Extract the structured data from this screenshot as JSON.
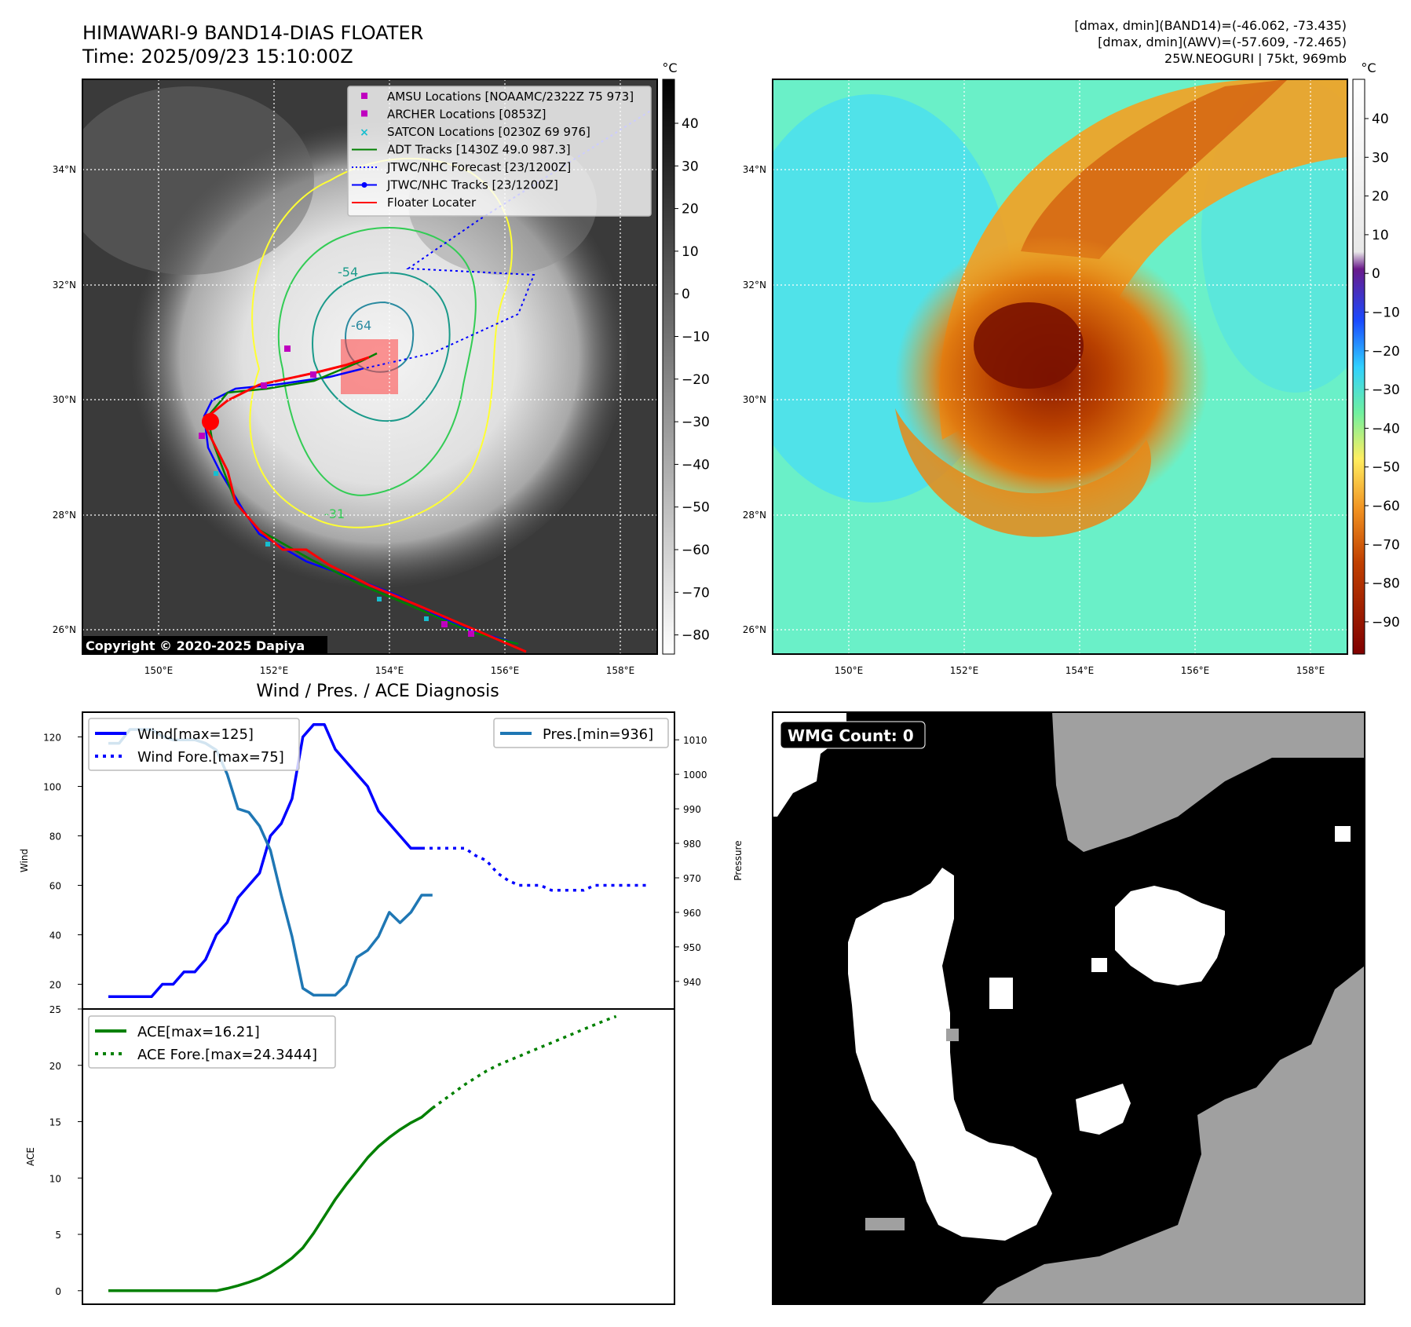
{
  "header": {
    "title_line1": "HIMAWARI-9 BAND14-DIAS FLOATER",
    "title_line2": "Time: 2025/09/23 15:10:00Z",
    "info_line1": "[dmax, dmin](BAND14)=(-46.062, -73.435)",
    "info_line2": "[dmax, dmin](AWV)=(-57.609, -72.465)",
    "info_line3": "25W.NEOGURI | 75kt, 969mb"
  },
  "ir_map": {
    "lat_labels": [
      "34°N",
      "32°N",
      "30°N",
      "28°N",
      "26°N"
    ],
    "lon_labels": [
      "150°E",
      "152°E",
      "154°E",
      "156°E",
      "158°E"
    ],
    "copyright": "Copyright © 2020-2025 Dapiya",
    "contour_labels": [
      "-54",
      "-64",
      "-31"
    ],
    "colorbar_unit": "°C",
    "colorbar_ticks": [
      "40",
      "30",
      "20",
      "10",
      "0",
      "−10",
      "−20",
      "−30",
      "−40",
      "−50",
      "−60",
      "−70",
      "−80"
    ],
    "legend": [
      {
        "label": "AMSU Locations [NOAAMC/2322Z 75 973]",
        "marker": "square",
        "color": "#bf00bf"
      },
      {
        "label": "ARCHER Locations [0853Z]",
        "marker": "square",
        "color": "#bf00bf"
      },
      {
        "label": "SATCON Locations [0230Z 69 976]",
        "marker": "x",
        "color": "#17becf"
      },
      {
        "label": "ADT Tracks [1430Z 49.0 987.3]",
        "marker": "line",
        "color": "#008000"
      },
      {
        "label": "JTWC/NHC Forecast [23/1200Z]",
        "marker": "dotted",
        "color": "#0000ff"
      },
      {
        "label": "JTWC/NHC Tracks [23/1200Z]",
        "marker": "line-dot",
        "color": "#0000ff"
      },
      {
        "label": "Floater Locater",
        "marker": "line",
        "color": "#ff0000"
      }
    ]
  },
  "awv_map": {
    "lat_labels": [
      "34°N",
      "32°N",
      "30°N",
      "28°N",
      "26°N"
    ],
    "lon_labels": [
      "150°E",
      "152°E",
      "154°E",
      "156°E",
      "158°E"
    ],
    "colorbar_unit": "°C",
    "colorbar_ticks": [
      "40",
      "30",
      "20",
      "10",
      "0",
      "−10",
      "−20",
      "−30",
      "−40",
      "−50",
      "−60",
      "−70",
      "−80",
      "−90"
    ]
  },
  "diagnosis": {
    "title": "Wind / Pres. / ACE Diagnosis",
    "wind_ylabel": "Wind",
    "pres_ylabel": "Pressure",
    "ace_ylabel": "ACE",
    "wind_ticks": [
      "120",
      "100",
      "80",
      "60",
      "40",
      "20"
    ],
    "pres_ticks": [
      "1010",
      "1000",
      "990",
      "980",
      "970",
      "960",
      "950",
      "940"
    ],
    "ace_ticks": [
      "25",
      "20",
      "15",
      "10",
      "5",
      "0"
    ],
    "legend_wind": "Wind[max=125]",
    "legend_wind_fore": "Wind Fore.[max=75]",
    "legend_pres": "Pres.[min=936]",
    "legend_ace": "ACE[max=16.21]",
    "legend_ace_fore": "ACE Fore.[max=24.3444]"
  },
  "wmg": {
    "label": "WMG Count: 0"
  },
  "chart_data": [
    {
      "type": "line",
      "title": "Wind / Pres. / ACE Diagnosis",
      "ylabel": "Wind",
      "ylim": [
        10,
        130
      ],
      "x": [
        0,
        1,
        2,
        3,
        4,
        5,
        6,
        7,
        8,
        9,
        10,
        11,
        12,
        13,
        14,
        15,
        16,
        17,
        18,
        19,
        20,
        21,
        22,
        23,
        24,
        25,
        26,
        27,
        28,
        29,
        30,
        31,
        32,
        33,
        34,
        35,
        36,
        37,
        38,
        39,
        40,
        41,
        42,
        43,
        44,
        45,
        46,
        47,
        48,
        49,
        50
      ],
      "series": [
        {
          "name": "Wind[max=125]",
          "color": "#0000ff",
          "values": [
            15,
            15,
            15,
            15,
            15,
            20,
            20,
            25,
            25,
            30,
            40,
            45,
            55,
            60,
            65,
            80,
            85,
            95,
            120,
            125,
            125,
            115,
            110,
            105,
            100,
            90,
            85,
            80,
            75,
            75,
            null,
            null,
            null,
            null,
            null,
            null,
            null,
            null,
            null,
            null,
            null,
            null,
            null,
            null,
            null,
            null,
            null,
            null,
            null,
            null,
            null
          ]
        },
        {
          "name": "Wind Fore.[max=75]",
          "color": "#0000ff",
          "dashed": true,
          "values": [
            null,
            null,
            null,
            null,
            null,
            null,
            null,
            null,
            null,
            null,
            null,
            null,
            null,
            null,
            null,
            null,
            null,
            null,
            null,
            null,
            null,
            null,
            null,
            null,
            null,
            null,
            null,
            null,
            null,
            75,
            75,
            75,
            75,
            75,
            72,
            70,
            65,
            62,
            60,
            60,
            60,
            58,
            58,
            58,
            58,
            60,
            60,
            60,
            60,
            60,
            60
          ]
        },
        {
          "name": "Pres.[min=936]",
          "color": "#1f77b4",
          "axis": "pressure",
          "ylim": [
            932,
            1018
          ],
          "values": [
            1009,
            1009,
            1013,
            1013,
            1013,
            1011,
            1010,
            1010,
            1010,
            1009,
            1007,
            1000,
            990,
            989,
            985,
            978,
            965,
            953,
            938,
            936,
            936,
            936,
            939,
            947,
            949,
            953,
            960,
            957,
            960,
            965,
            965,
            null,
            null,
            null,
            null,
            null,
            null,
            null,
            null,
            null,
            null,
            null,
            null,
            null,
            null,
            null,
            null,
            null,
            null,
            null,
            null
          ]
        }
      ]
    },
    {
      "type": "line",
      "ylabel": "ACE",
      "ylim": [
        -1.2,
        25
      ],
      "x": [
        0,
        1,
        2,
        3,
        4,
        5,
        6,
        7,
        8,
        9,
        10,
        11,
        12,
        13,
        14,
        15,
        16,
        17,
        18,
        19,
        20,
        21,
        22,
        23,
        24,
        25,
        26,
        27,
        28,
        29,
        30,
        31,
        32,
        33,
        34,
        35,
        36,
        37,
        38,
        39,
        40,
        41,
        42,
        43,
        44,
        45,
        46,
        47,
        48,
        49,
        50
      ],
      "series": [
        {
          "name": "ACE[max=16.21]",
          "color": "#008000",
          "values": [
            0,
            0,
            0,
            0,
            0,
            0,
            0,
            0,
            0,
            0,
            0,
            0.2,
            0.45,
            0.75,
            1.1,
            1.6,
            2.2,
            2.9,
            3.8,
            5.1,
            6.6,
            8.1,
            9.4,
            10.6,
            11.8,
            12.8,
            13.6,
            14.3,
            14.9,
            15.4,
            16.21,
            null,
            null,
            null,
            null,
            null,
            null,
            null,
            null,
            null,
            null,
            null,
            null,
            null,
            null,
            null,
            null,
            null,
            null,
            null,
            null
          ]
        },
        {
          "name": "ACE Fore.[max=24.3444]",
          "color": "#008000",
          "dashed": true,
          "values": [
            null,
            null,
            null,
            null,
            null,
            null,
            null,
            null,
            null,
            null,
            null,
            null,
            null,
            null,
            null,
            null,
            null,
            null,
            null,
            null,
            null,
            null,
            null,
            null,
            null,
            null,
            null,
            null,
            null,
            null,
            16.21,
            16.9,
            17.6,
            18.3,
            18.9,
            19.5,
            20.0,
            20.4,
            20.8,
            21.2,
            21.6,
            22.0,
            22.4,
            22.8,
            23.2,
            23.6,
            24.0,
            24.3444,
            null,
            null,
            null
          ]
        }
      ]
    }
  ],
  "colors": {
    "wind": "#0000ff",
    "pressure": "#1f77b4",
    "ace": "#008000",
    "track_red": "#ff0000",
    "wmg_gray": "#a0a0a0"
  }
}
